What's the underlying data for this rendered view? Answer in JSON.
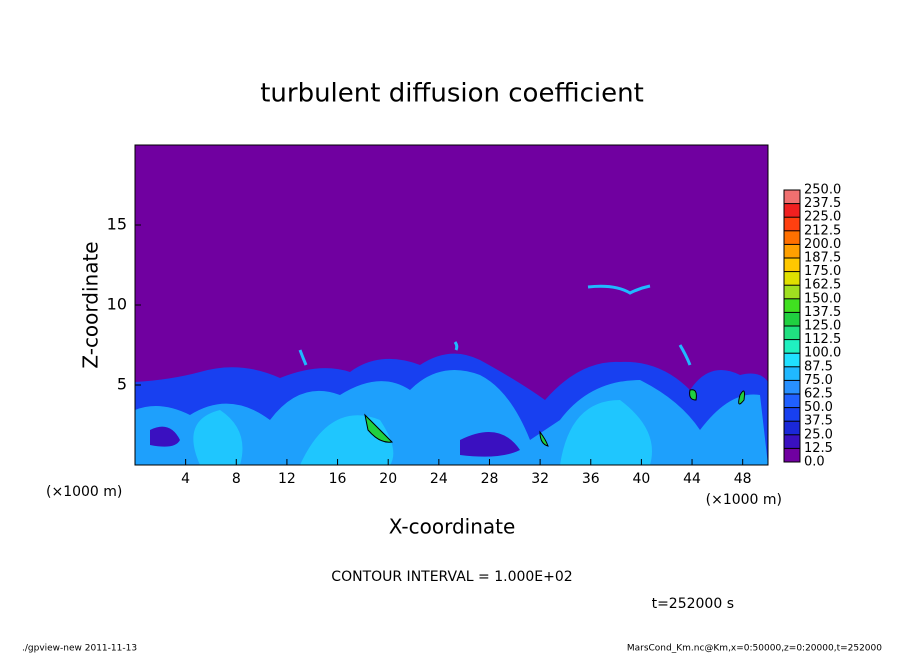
{
  "chart_data": {
    "type": "contour",
    "title": "turbulent diffusion coefficient",
    "xlabel": "X-coordinate",
    "ylabel": "Z-coordinate",
    "x_unit_label": "(×1000 m)",
    "y_unit_label": "(×1000 m)",
    "xlim": [
      0,
      50
    ],
    "xticks": [
      4,
      8,
      12,
      16,
      20,
      24,
      28,
      32,
      36,
      40,
      44,
      48
    ],
    "ylim": [
      0,
      20
    ],
    "yticks": [
      5,
      10,
      15
    ],
    "background_color": "#7000a0",
    "colorbar": {
      "levels": [
        {
          "value": 0,
          "label": "0.0"
        },
        {
          "value": 12.5,
          "label": "12.5"
        },
        {
          "value": 25,
          "label": "25.0"
        },
        {
          "value": 37.5,
          "label": "37.5"
        },
        {
          "value": 50,
          "label": "50.0"
        },
        {
          "value": 62.5,
          "label": "62.5"
        },
        {
          "value": 75,
          "label": "75.0"
        },
        {
          "value": 87.5,
          "label": "87.5"
        },
        {
          "value": 100,
          "label": "100.0"
        },
        {
          "value": 112.5,
          "label": "112.5"
        },
        {
          "value": 125,
          "label": "125.0"
        },
        {
          "value": 137.5,
          "label": "137.5"
        },
        {
          "value": 150,
          "label": "150.0"
        },
        {
          "value": 162.5,
          "label": "162.5"
        },
        {
          "value": 175,
          "label": "175.0"
        },
        {
          "value": 187.5,
          "label": "187.5"
        },
        {
          "value": 200,
          "label": "200.0"
        },
        {
          "value": 212.5,
          "label": "212.5"
        },
        {
          "value": 225,
          "label": "225.0"
        },
        {
          "value": 237.5,
          "label": "237.5"
        },
        {
          "value": 250,
          "label": "250.0"
        }
      ],
      "colors": [
        "#7000a0",
        "#3a10c0",
        "#1a28d8",
        "#1840f0",
        "#2060ff",
        "#2890ff",
        "#20b8ff",
        "#20e0ff",
        "#20f0c0",
        "#20e080",
        "#20d040",
        "#40e020",
        "#a0e020",
        "#e0e000",
        "#ffc800",
        "#ffa000",
        "#ff7000",
        "#ff4010",
        "#f02020",
        "#f07070"
      ]
    },
    "contour_interval": "CONTOUR INTERVAL = 1.000E+02",
    "time_label": "t=252000 s",
    "footer_left": "./gpview-new   2011-11-13",
    "footer_right": "MarsCond_Km.nc@Km,x=0:50000,z=0:20000,t=252000"
  }
}
